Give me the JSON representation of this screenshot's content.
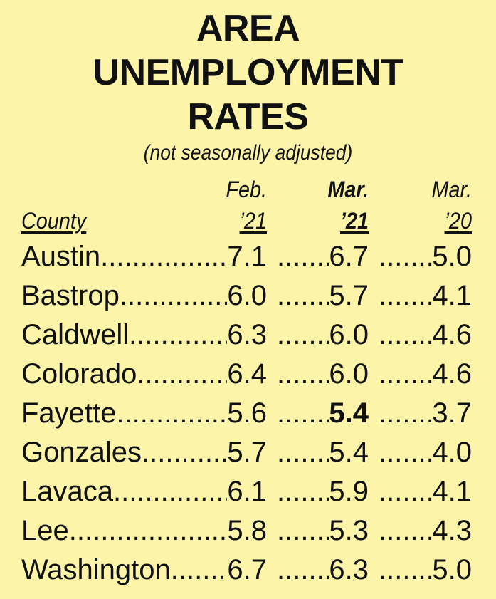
{
  "title": {
    "lines": [
      "AREA",
      "UNEMPLOYMENT",
      "RATES"
    ]
  },
  "subtitle": "(not seasonally adjusted)",
  "header": {
    "top": [
      "Feb.",
      "Mar.",
      "Mar."
    ],
    "bottom": [
      "County",
      "’21",
      "’21",
      "’20"
    ]
  },
  "table": {
    "rows": [
      [
        "Austin",
        "7.1",
        "6.7",
        "5.0"
      ],
      [
        "Bastrop",
        "6.0",
        "5.7",
        "4.1"
      ],
      [
        "Caldwell",
        "6.3",
        "6.0",
        "4.6"
      ],
      [
        "Colorado",
        "6.4",
        "6.0",
        "4.6"
      ],
      [
        "Fayette",
        "5.6",
        "5.4",
        "3.7"
      ],
      [
        "Gonzales",
        "5.7",
        "5.4",
        "4.0"
      ],
      [
        "Lavaca",
        "6.1",
        "5.9",
        "4.1"
      ],
      [
        "Lee",
        "5.8",
        "5.3",
        "4.3"
      ],
      [
        "Washington",
        "6.7",
        "6.3",
        "5.0"
      ]
    ]
  }
}
